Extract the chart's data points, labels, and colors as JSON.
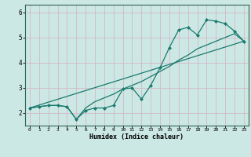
{
  "xlabel": "Humidex (Indice chaleur)",
  "bg_color": "#cce8e4",
  "line_color": "#1a7a6e",
  "grid_color": "#d4b8c8",
  "xlim": [
    -0.5,
    23.5
  ],
  "ylim": [
    1.5,
    6.3
  ],
  "yticks": [
    2,
    3,
    4,
    5,
    6
  ],
  "xticks": [
    0,
    1,
    2,
    3,
    4,
    5,
    6,
    7,
    8,
    9,
    10,
    11,
    12,
    13,
    14,
    15,
    16,
    17,
    18,
    19,
    20,
    21,
    22,
    23
  ],
  "main_x": [
    0,
    1,
    2,
    3,
    4,
    5,
    6,
    7,
    8,
    9,
    10,
    11,
    12,
    13,
    14,
    15,
    16,
    17,
    18,
    19,
    20,
    21,
    22,
    23
  ],
  "main_y": [
    2.2,
    2.25,
    2.3,
    2.3,
    2.25,
    1.75,
    2.1,
    2.2,
    2.2,
    2.3,
    2.95,
    3.0,
    2.55,
    3.1,
    3.8,
    4.6,
    5.3,
    5.4,
    5.1,
    5.7,
    5.65,
    5.55,
    5.25,
    4.85
  ],
  "smooth_x": [
    0,
    1,
    2,
    3,
    4,
    5,
    6,
    7,
    8,
    9,
    10,
    11,
    12,
    13,
    14,
    15,
    16,
    17,
    18,
    19,
    20,
    21,
    22,
    23
  ],
  "smooth_y": [
    2.2,
    2.25,
    2.3,
    2.3,
    2.25,
    1.75,
    2.2,
    2.45,
    2.6,
    2.75,
    2.95,
    3.1,
    3.25,
    3.45,
    3.65,
    3.85,
    4.1,
    4.3,
    4.55,
    4.7,
    4.85,
    5.0,
    5.15,
    4.85
  ],
  "line_x": [
    0,
    23
  ],
  "line_y": [
    2.2,
    4.85
  ]
}
